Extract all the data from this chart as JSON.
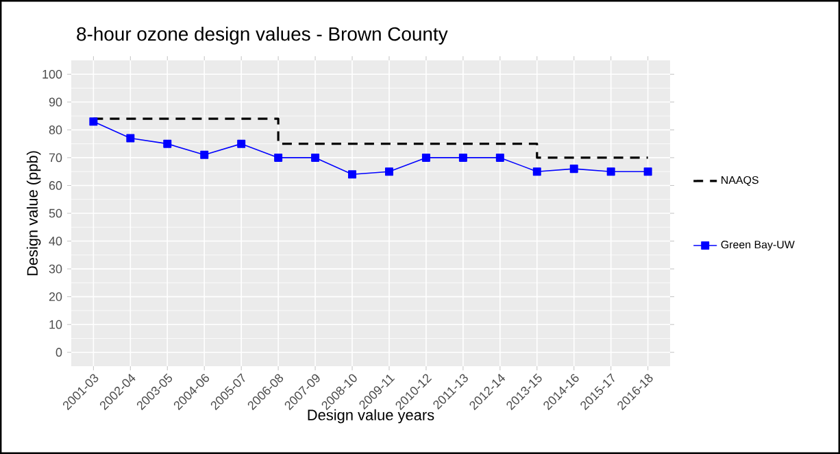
{
  "chart_data": {
    "type": "line",
    "title": "8-hour ozone design values - Brown County",
    "xlabel": "Design value years",
    "ylabel": "Design value (ppb)",
    "categories": [
      "2001-03",
      "2002-04",
      "2003-05",
      "2004-06",
      "2005-07",
      "2006-08",
      "2007-09",
      "2008-10",
      "2009-11",
      "2010-12",
      "2011-13",
      "2012-14",
      "2013-15",
      "2014-16",
      "2015-17",
      "2016-18"
    ],
    "series": [
      {
        "name": "NAAQS",
        "type": "step",
        "color": "#000000",
        "line_style": "dashed",
        "marker": "none",
        "values": [
          84,
          84,
          84,
          84,
          84,
          75,
          75,
          75,
          75,
          75,
          75,
          75,
          70,
          70,
          70,
          70
        ]
      },
      {
        "name": "Green Bay-UW",
        "color": "#0000ff",
        "line_style": "solid",
        "marker": "square",
        "values": [
          83,
          77,
          75,
          71,
          75,
          70,
          70,
          64,
          65,
          70,
          70,
          70,
          65,
          66,
          65,
          65
        ]
      }
    ],
    "ylim": [
      -5,
      105
    ],
    "yticks": [
      0,
      10,
      20,
      30,
      40,
      50,
      60,
      70,
      80,
      90,
      100
    ],
    "grid": true,
    "legend": "right"
  }
}
